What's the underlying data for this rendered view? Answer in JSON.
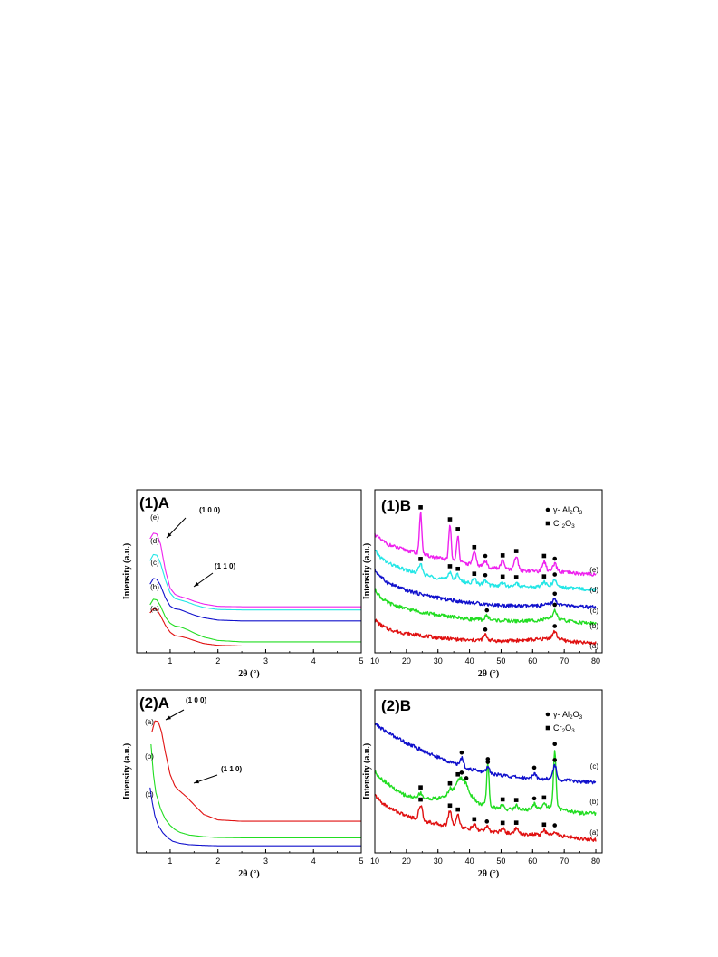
{
  "colors": {
    "a": "#e01010",
    "b": "#22dd22",
    "c": "#1010cc",
    "d": "#22e6e6",
    "e": "#ee22ee",
    "axis": "#000000"
  },
  "chart_data": [
    {
      "type": "line",
      "panel_label": "(1)A",
      "xlabel": "2θ (°)",
      "ylabel": "Intensity (a.u.)",
      "xlim": [
        0.3,
        5
      ],
      "ylim": [
        0,
        10
      ],
      "xticks": [
        "1",
        "2",
        "3",
        "4",
        "5"
      ],
      "series": [
        {
          "name": "(a)",
          "color_key": "a",
          "x": [
            0.58,
            0.65,
            0.72,
            0.8,
            0.9,
            1.0,
            1.1,
            1.2,
            1.35,
            1.5,
            1.7,
            2.0,
            2.5,
            3.0,
            4.0,
            5.0
          ],
          "y": [
            2.5,
            2.8,
            2.75,
            2.3,
            1.6,
            1.1,
            0.85,
            0.8,
            0.68,
            0.5,
            0.28,
            0.15,
            0.1,
            0.1,
            0.1,
            0.1
          ]
        },
        {
          "name": "(b)",
          "color_key": "b",
          "x": [
            0.58,
            0.65,
            0.72,
            0.8,
            0.9,
            1.0,
            1.1,
            1.2,
            1.35,
            1.5,
            1.7,
            2.0,
            2.5,
            3.0,
            4.0,
            5.0
          ],
          "y": [
            3.1,
            3.5,
            3.45,
            3.0,
            2.2,
            1.75,
            1.55,
            1.5,
            1.3,
            1.05,
            0.75,
            0.5,
            0.4,
            0.4,
            0.4,
            0.4
          ]
        },
        {
          "name": "(c)",
          "color_key": "c",
          "x": [
            0.58,
            0.65,
            0.72,
            0.8,
            0.9,
            1.0,
            1.1,
            1.2,
            1.35,
            1.5,
            1.7,
            2.0,
            2.5,
            3.0,
            4.0,
            5.0
          ],
          "y": [
            4.6,
            5.0,
            4.95,
            4.5,
            3.6,
            3.0,
            2.8,
            2.75,
            2.55,
            2.35,
            2.15,
            1.98,
            1.92,
            1.92,
            1.92,
            1.92
          ]
        },
        {
          "name": "(d)",
          "color_key": "d",
          "x": [
            0.58,
            0.65,
            0.72,
            0.8,
            0.9,
            1.0,
            1.1,
            1.2,
            1.35,
            1.5,
            1.7,
            2.0,
            2.5,
            3.0,
            4.0,
            5.0
          ],
          "y": [
            6.3,
            6.75,
            6.7,
            6.1,
            4.9,
            3.95,
            3.55,
            3.45,
            3.3,
            3.1,
            2.9,
            2.75,
            2.72,
            2.72,
            2.72,
            2.72
          ]
        },
        {
          "name": "(e)",
          "color_key": "e",
          "x": [
            0.58,
            0.65,
            0.72,
            0.8,
            0.9,
            1.0,
            1.1,
            1.2,
            1.35,
            1.5,
            1.7,
            2.0,
            2.5,
            3.0,
            4.0,
            5.0
          ],
          "y": [
            7.9,
            8.3,
            8.25,
            7.5,
            5.6,
            4.3,
            3.85,
            3.7,
            3.55,
            3.35,
            3.15,
            2.98,
            2.95,
            2.95,
            2.95,
            2.95
          ]
        }
      ],
      "annotations": [
        {
          "text": "(1 0 0)"
        },
        {
          "text": "(1 1 0)"
        }
      ]
    },
    {
      "type": "line",
      "panel_label": "(1)B",
      "xlabel": "2θ (°)",
      "ylabel": "Intensity (a.u.)",
      "xlim": [
        10,
        82
      ],
      "ylim": [
        0,
        10
      ],
      "xticks": [
        "10",
        "20",
        "30",
        "40",
        "50",
        "60",
        "70",
        "80"
      ],
      "legend": [
        "γ- Al2O3",
        "Cr2O3"
      ],
      "legend_position": "top-right",
      "series": [
        {
          "name": "(a)",
          "color_key": "a",
          "x": [
            10,
            12,
            14,
            17,
            20,
            25,
            30,
            35,
            40,
            45,
            50,
            55,
            60,
            63,
            66,
            67,
            70,
            75,
            80
          ],
          "y": [
            2.0,
            1.6,
            1.35,
            1.15,
            1.0,
            0.85,
            0.7,
            0.6,
            0.5,
            0.55,
            0.45,
            0.5,
            0.55,
            0.6,
            0.72,
            0.7,
            0.5,
            0.35,
            0.3
          ],
          "peaks": {
            "x": [
              45,
              67
            ],
            "h": [
              0.35,
              0.45
            ]
          },
          "markers": {
            "gamma": [
              45,
              67
            ],
            "cr2o3": []
          }
        },
        {
          "name": "(b)",
          "color_key": "b",
          "x": [
            10,
            12,
            14,
            17,
            20,
            25,
            30,
            35,
            40,
            45,
            50,
            55,
            60,
            63,
            66,
            67,
            70,
            75,
            80
          ],
          "y": [
            4.2,
            3.6,
            3.25,
            3.0,
            2.8,
            2.55,
            2.35,
            2.2,
            2.05,
            2.0,
            1.95,
            1.9,
            1.95,
            2.0,
            2.1,
            2.1,
            1.95,
            1.8,
            1.75
          ],
          "peaks": {
            "x": [
              45.5,
              67
            ],
            "h": [
              0.3,
              0.6
            ]
          },
          "markers": {
            "gamma": [
              45.5,
              67
            ],
            "cr2o3": []
          }
        },
        {
          "name": "(c)",
          "color_key": "c",
          "x": [
            10,
            12,
            14,
            17,
            20,
            25,
            30,
            35,
            40,
            45,
            50,
            55,
            60,
            63,
            66,
            67,
            70,
            75,
            80
          ],
          "y": [
            5.6,
            5.1,
            4.7,
            4.4,
            4.15,
            3.85,
            3.6,
            3.4,
            3.25,
            3.15,
            3.05,
            3.0,
            3.0,
            3.05,
            3.15,
            3.15,
            3.05,
            2.95,
            2.9
          ],
          "peaks": {
            "x": [
              67
            ],
            "h": [
              0.35
            ]
          },
          "markers": {
            "gamma": [
              67
            ],
            "cr2o3": []
          }
        },
        {
          "name": "(d)",
          "color_key": "d",
          "x": [
            10,
            12,
            14,
            17,
            20,
            25,
            30,
            35,
            40,
            45,
            50,
            55,
            60,
            63,
            66,
            67,
            70,
            75,
            80
          ],
          "y": [
            7.0,
            6.5,
            6.15,
            5.85,
            5.6,
            5.3,
            5.05,
            4.85,
            4.7,
            4.55,
            4.45,
            4.4,
            4.4,
            4.45,
            4.5,
            4.5,
            4.35,
            4.25,
            4.2
          ],
          "peaks": {
            "x": [
              24.5,
              33.8,
              36.3,
              41.5,
              45,
              50.5,
              54.8,
              63.6,
              67
            ],
            "h": [
              0.7,
              0.6,
              0.5,
              0.3,
              0.3,
              0.3,
              0.3,
              0.3,
              0.4
            ]
          },
          "markers": {
            "gamma": [
              45,
              67
            ],
            "cr2o3": [
              24.5,
              33.8,
              36.3,
              41.5,
              50.5,
              54.8,
              63.6
            ]
          }
        },
        {
          "name": "(e)",
          "color_key": "e",
          "x": [
            10,
            12,
            14,
            17,
            20,
            25,
            30,
            35,
            40,
            45,
            50,
            55,
            60,
            63,
            66,
            67,
            70,
            75,
            80
          ],
          "y": [
            8.2,
            7.8,
            7.5,
            7.25,
            7.05,
            6.75,
            6.5,
            6.25,
            6.05,
            5.85,
            5.7,
            5.6,
            5.55,
            5.55,
            5.55,
            5.55,
            5.45,
            5.35,
            5.3
          ],
          "peaks": {
            "x": [
              24.5,
              33.8,
              36.3,
              41.5,
              45,
              50.5,
              54.8,
              63.6,
              67
            ],
            "h": [
              3.0,
              2.6,
              2.0,
              0.9,
              0.4,
              0.6,
              1.0,
              0.7,
              0.5
            ]
          },
          "markers": {
            "gamma": [
              45,
              67
            ],
            "cr2o3": [
              24.5,
              33.8,
              36.3,
              41.5,
              50.5,
              54.8,
              63.6
            ]
          }
        }
      ]
    },
    {
      "type": "line",
      "panel_label": "(2)A",
      "xlabel": "2θ (°)",
      "ylabel": "Intensity (a.u.)",
      "xlim": [
        0.3,
        5
      ],
      "ylim": [
        0,
        10
      ],
      "xticks": [
        "1",
        "2",
        "3",
        "4",
        "5"
      ],
      "series": [
        {
          "name": "(a)",
          "color_key": "a",
          "x": [
            0.62,
            0.68,
            0.75,
            0.82,
            0.9,
            1.0,
            1.1,
            1.2,
            1.35,
            1.5,
            1.7,
            2.0,
            2.5,
            3.0,
            4.0,
            5.0
          ],
          "y": [
            8.4,
            9.2,
            9.15,
            8.4,
            6.9,
            5.3,
            4.45,
            4.1,
            3.65,
            3.1,
            2.4,
            2.0,
            1.9,
            1.9,
            1.9,
            1.9
          ]
        },
        {
          "name": "(b)",
          "color_key": "b",
          "x": [
            0.6,
            0.65,
            0.7,
            0.8,
            0.9,
            1.0,
            1.1,
            1.2,
            1.4,
            1.7,
            2.0,
            2.5,
            3.0,
            4.0,
            5.0
          ],
          "y": [
            7.5,
            5.3,
            4.0,
            2.8,
            2.05,
            1.6,
            1.3,
            1.1,
            0.9,
            0.78,
            0.72,
            0.7,
            0.7,
            0.7,
            0.7
          ]
        },
        {
          "name": "(c)",
          "color_key": "c",
          "x": [
            0.58,
            0.62,
            0.68,
            0.75,
            0.85,
            0.95,
            1.05,
            1.2,
            1.4,
            1.7,
            2.0,
            2.5,
            3.0,
            4.0,
            5.0
          ],
          "y": [
            4.35,
            3.4,
            2.3,
            1.6,
            1.05,
            0.7,
            0.45,
            0.3,
            0.2,
            0.15,
            0.12,
            0.12,
            0.12,
            0.12,
            0.12
          ]
        }
      ],
      "annotations": [
        {
          "text": "(1 0 0)"
        },
        {
          "text": "(1 1 0)"
        }
      ]
    },
    {
      "type": "line",
      "panel_label": "(2)B",
      "xlabel": "2θ (°)",
      "ylabel": "Intensity (a.u.)",
      "xlim": [
        10,
        82
      ],
      "ylim": [
        0,
        10
      ],
      "xticks": [
        "10",
        "20",
        "30",
        "40",
        "50",
        "60",
        "70",
        "80"
      ],
      "legend": [
        "γ- Al2O3",
        "Cr2O3"
      ],
      "legend_position": "top-right",
      "series": [
        {
          "name": "(a)",
          "color_key": "a",
          "x": [
            10,
            12,
            14,
            17,
            20,
            25,
            30,
            35,
            40,
            45,
            50,
            55,
            60,
            65,
            70,
            75,
            80
          ],
          "y": [
            3.8,
            3.3,
            2.95,
            2.6,
            2.3,
            1.95,
            1.7,
            1.5,
            1.35,
            1.2,
            1.1,
            1.0,
            0.95,
            0.9,
            0.8,
            0.65,
            0.55
          ],
          "peaks": {
            "x": [
              24.5,
              33.8,
              36.3,
              41.5,
              45.5,
              50.5,
              54.8,
              63.6,
              67
            ],
            "h": [
              1.1,
              1.1,
              0.9,
              0.35,
              0.3,
              0.3,
              0.4,
              0.35,
              0.35
            ]
          },
          "markers": {
            "gamma": [
              45.5,
              67
            ],
            "cr2o3": [
              24.5,
              33.8,
              36.3,
              41.5,
              50.5,
              54.8,
              63.6
            ]
          }
        },
        {
          "name": "(b)",
          "color_key": "b",
          "x": [
            10,
            12,
            14,
            17,
            20,
            25,
            30,
            33,
            35,
            37.5,
            40,
            43,
            47,
            50,
            55,
            60,
            63,
            66,
            70,
            75,
            80
          ],
          "y": [
            5.5,
            5.0,
            4.65,
            4.1,
            3.75,
            3.55,
            3.55,
            3.8,
            4.2,
            5.0,
            3.9,
            3.2,
            2.95,
            2.8,
            2.75,
            2.75,
            2.85,
            3.0,
            2.7,
            2.5,
            2.45
          ],
          "peaks": {
            "x": [
              24.5,
              33.8,
              36.3,
              39,
              45.8,
              50.5,
              54.8,
              60.5,
              63.6,
              67
            ],
            "h": [
              0.4,
              0.3,
              0.3,
              0.3,
              3.0,
              0.3,
              0.3,
              0.4,
              0.35,
              4.2
            ]
          },
          "markers": {
            "gamma": [
              37.5,
              39,
              45.8,
              60.5,
              67
            ],
            "cr2o3": [
              24.5,
              33.8,
              36.3,
              50.5,
              54.8,
              63.6
            ]
          }
        },
        {
          "name": "(c)",
          "color_key": "c",
          "x": [
            10,
            13,
            16,
            20,
            25,
            30,
            35,
            40,
            45,
            50,
            55,
            60,
            65,
            70,
            75,
            80
          ],
          "y": [
            9.0,
            8.5,
            8.1,
            7.6,
            7.05,
            6.55,
            6.1,
            5.7,
            5.45,
            5.25,
            5.1,
            5.0,
            5.0,
            4.9,
            4.8,
            4.75
          ],
          "peaks": {
            "x": [
              37.5,
              45.8,
              60.5,
              67
            ],
            "h": [
              0.6,
              0.4,
              0.4,
              1.0
            ]
          },
          "markers": {
            "gamma": [
              37.5,
              45.8,
              60.5,
              67
            ],
            "cr2o3": []
          }
        }
      ]
    }
  ]
}
